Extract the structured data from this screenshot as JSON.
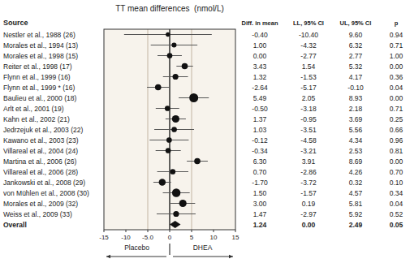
{
  "chart_data": {
    "type": "forest",
    "title": "TT mean differences  (nmol/L)",
    "source_header": "Source",
    "categories": [
      "Nestler et al., 1988 (26)",
      "Morales et al., 1994 (13)",
      "Morales et al., 1998 (15)",
      "Reiter et al., 1998 (17)",
      "Flynn et al., 1999 (16)",
      "Flynn et al., 1999 * (16)",
      "Baulieu et al., 2000 (18)",
      "Arlt et al., 2001 (19)",
      "Kahn et al., 2002 (21)",
      "Jedrzejuk et al., 2003 (22)",
      "Kawano et al., 2003 (23)",
      "Villareal et al., 2004 (24)",
      "Martina et al., 2006 (26)",
      "Villareal et al., 2006 (28)",
      "Jankowski et al., 2008 (29)",
      "von Mühlen et al., 2008 (30)",
      "Morales et al., 2009 (32)",
      "Weiss et al., 2009 (33)",
      "Overall"
    ],
    "values": [
      -0.4,
      1.0,
      0.0,
      3.43,
      1.32,
      -2.64,
      5.49,
      -0.5,
      1.37,
      1.03,
      -0.12,
      -0.34,
      6.3,
      0.7,
      -1.7,
      1.5,
      3.0,
      1.47,
      1.24
    ],
    "value_labels": [
      "-0.40",
      "1.00",
      "0.00",
      "3.43",
      "1.32",
      "-2.64",
      "5.49",
      "-0.50",
      "1.37",
      "1.03",
      "-0.12",
      "-0.34",
      "6.30",
      "0.70",
      "-1.70",
      "1.50",
      "3.00",
      "1.47",
      "1.24"
    ],
    "ci_low": [
      -10.4,
      -4.32,
      -2.77,
      1.54,
      -1.53,
      -5.17,
      2.05,
      -3.18,
      -0.95,
      -3.51,
      -4.58,
      -3.21,
      3.91,
      -2.86,
      -3.72,
      -1.57,
      0.19,
      -2.97,
      0.0
    ],
    "ci_low_labels": [
      "-10.40",
      "-4.32",
      "-2.77",
      "1.54",
      "-1.53",
      "-5.17",
      "2.05",
      "-3.18",
      "-0.95",
      "-3.51",
      "-4.58",
      "-3.21",
      "3.91",
      "-2.86",
      "-3.72",
      "-1.57",
      "0.19",
      "-2.97",
      "0.00"
    ],
    "ci_high": [
      9.6,
      6.32,
      2.77,
      5.32,
      4.17,
      -0.1,
      8.93,
      2.18,
      3.69,
      5.56,
      4.34,
      2.53,
      8.69,
      4.26,
      0.32,
      4.57,
      5.81,
      5.92,
      2.49
    ],
    "ci_high_labels": [
      "9.60",
      "6.32",
      "2.77",
      "5.32",
      "4.17",
      "-0.10",
      "8.93",
      "2.18",
      "3.69",
      "5.56",
      "4.34",
      "2.53",
      "8.69",
      "4.26",
      "0.32",
      "4.57",
      "5.81",
      "5.92",
      "2.49"
    ],
    "p_values": [
      0.94,
      0.71,
      1.0,
      0.0,
      0.36,
      0.04,
      0.0,
      0.71,
      0.25,
      0.66,
      0.96,
      0.81,
      0.0,
      0.7,
      0.1,
      0.34,
      0.04,
      0.52,
      0.05
    ],
    "p_value_labels": [
      "0.94",
      "0.71",
      "1.00",
      "0.00",
      "0.36",
      "0.04",
      "0.00",
      "0.71",
      "0.25",
      "0.66",
      "0.96",
      "0.81",
      "0.00",
      "0.70",
      "0.10",
      "0.34",
      "0.04",
      "0.52",
      "0.05"
    ],
    "weights": [
      1,
      1.5,
      2,
      3,
      2.5,
      3,
      8,
      2,
      5,
      2,
      2,
      2,
      3,
      2,
      4,
      7,
      5,
      2.5,
      null
    ],
    "column_headers": [
      "Diff. in mean",
      "LL, 95% CI",
      "UL, 95% CI",
      "p"
    ],
    "xlim": [
      -15,
      15
    ],
    "xticks": [
      -15,
      -10,
      {
        "value": -5.0,
        "label": "-5.0"
      },
      0,
      5,
      10,
      15
    ],
    "reference_lines": [
      -5.0,
      5.0
    ],
    "zero_line": 0,
    "direction_labels": [
      "Placebo",
      "DHEA"
    ]
  }
}
